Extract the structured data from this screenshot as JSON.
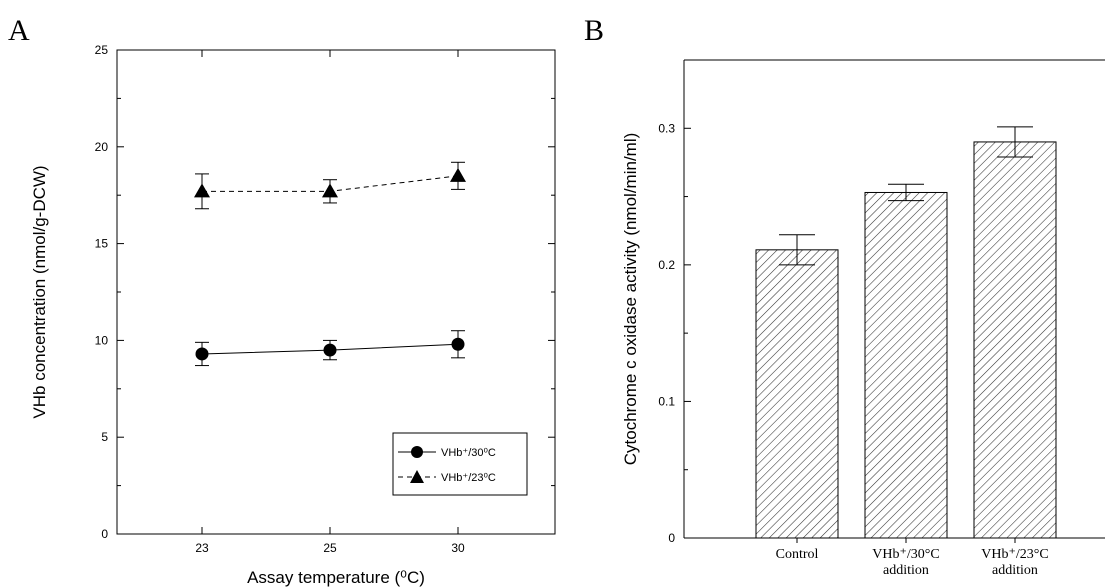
{
  "chart_data": [
    {
      "panel": "A",
      "type": "line",
      "xlabel": "Assay temperature (⁰C)",
      "ylabel": "VHb concentration (nmol/g-DCW)",
      "ylim": [
        0,
        25
      ],
      "yticks": [
        "0",
        "5",
        "10",
        "15",
        "20",
        "25"
      ],
      "categories": [
        "23",
        "25",
        "30"
      ],
      "legend_position": "bottom-right",
      "series": [
        {
          "name": "VHb⁺/30⁰C",
          "marker": "circle",
          "line": "solid",
          "values": [
            9.3,
            9.5,
            9.8
          ],
          "errors": [
            0.6,
            0.5,
            0.7
          ]
        },
        {
          "name": "VHb⁺/23⁰C",
          "marker": "triangle",
          "line": "dashed",
          "values": [
            17.7,
            17.7,
            18.5
          ],
          "errors": [
            0.9,
            0.6,
            0.7
          ]
        }
      ]
    },
    {
      "panel": "B",
      "type": "bar",
      "ylabel": "Cytochrome c oxidase activity (nmol/min/ml)",
      "ylim": [
        0,
        0.35
      ],
      "yticks": [
        "0",
        "0.1",
        "0.2",
        "0.3"
      ],
      "categories": [
        {
          "line1": "Control",
          "line2": ""
        },
        {
          "line1": "VHb⁺/30°C",
          "line2": "addition"
        },
        {
          "line1": "VHb⁺/23°C",
          "line2": "addition"
        }
      ],
      "values": [
        0.211,
        0.253,
        0.29
      ],
      "errors": [
        0.011,
        0.006,
        0.011
      ],
      "fill": "diagonal-hatch"
    }
  ]
}
